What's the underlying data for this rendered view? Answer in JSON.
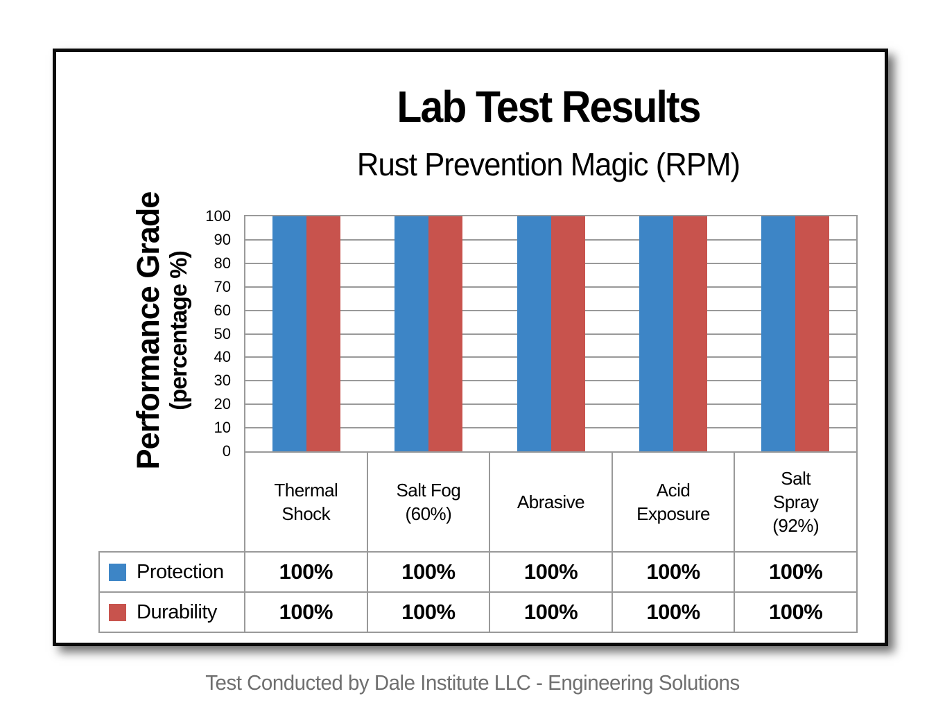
{
  "header": {
    "title": "Lab Test Results",
    "subtitle": "Rust Prevention Magic (RPM)"
  },
  "y_axis": {
    "title": "Performance Grade",
    "subtitle": "(percentage %)"
  },
  "chart_data": {
    "type": "bar",
    "title": "Lab Test Results",
    "subtitle": "Rust Prevention Magic (RPM)",
    "ylabel": "Performance Grade (percentage %)",
    "xlabel": "",
    "ylim": [
      0,
      100
    ],
    "yticks": [
      0,
      10,
      20,
      30,
      40,
      50,
      60,
      70,
      80,
      90,
      100
    ],
    "grid": true,
    "legend_position": "table-left",
    "categories": [
      "Thermal Shock",
      "Salt Fog (60%)",
      "Abrasive",
      "Acid Exposure",
      "Salt Spray (92%)"
    ],
    "category_lines": [
      [
        "Thermal",
        "Shock"
      ],
      [
        "Salt Fog",
        "(60%)"
      ],
      [
        "Abrasive"
      ],
      [
        "Acid",
        "Exposure"
      ],
      [
        "Salt",
        "Spray",
        "(92%)"
      ]
    ],
    "series": [
      {
        "name": "Protection",
        "color": "#3D85C6",
        "values": [
          100,
          100,
          100,
          100,
          100
        ],
        "value_labels": [
          "100%",
          "100%",
          "100%",
          "100%",
          "100%"
        ]
      },
      {
        "name": "Durability",
        "color": "#C8534D",
        "values": [
          100,
          100,
          100,
          100,
          100
        ],
        "value_labels": [
          "100%",
          "100%",
          "100%",
          "100%",
          "100%"
        ]
      }
    ]
  },
  "footer": {
    "text": "Test Conducted by Dale Institute LLC - Engineering Solutions"
  },
  "colors": {
    "grid": "#999999",
    "frame": "#0B0B0B",
    "footer_text": "#6F6F6F",
    "series_protection": "#3D85C6",
    "series_durability": "#C8534D"
  }
}
